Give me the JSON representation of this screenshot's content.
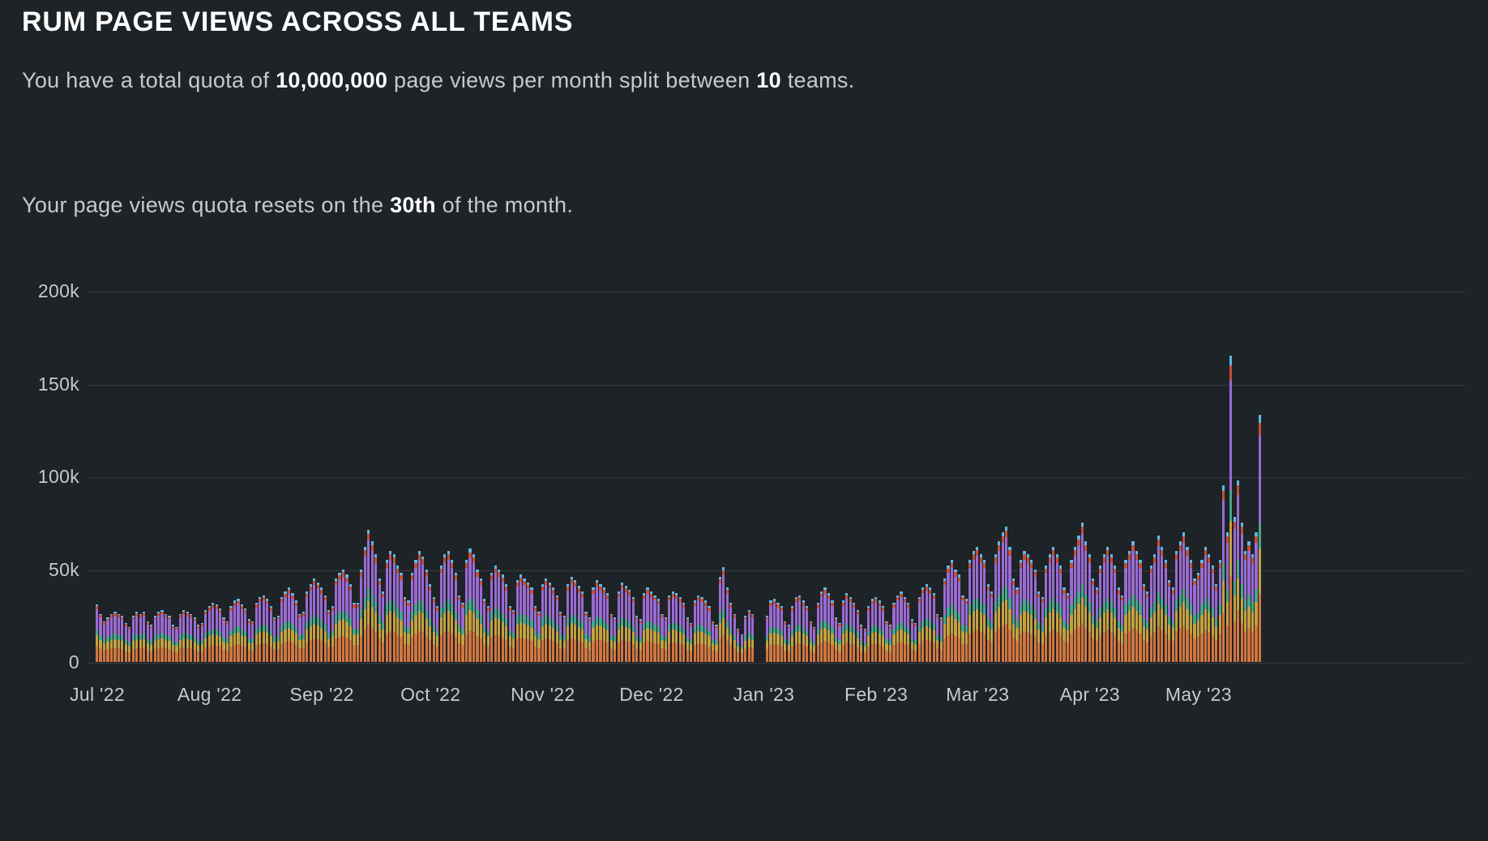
{
  "page": {
    "title": "RUM PAGE VIEWS ACROSS ALL TEAMS",
    "quota_line": {
      "prefix": "You have a total quota of ",
      "quota": "10,000,000",
      "middle": " page views per month split between ",
      "teams": "10",
      "suffix": " teams."
    },
    "reset_line": {
      "prefix": "Your page views quota resets on the ",
      "day": "30th",
      "suffix": " of the month."
    }
  },
  "colors": {
    "background": "#1e2327",
    "title_text": "#ffffff",
    "body_text": "#c6cacd",
    "grid": "#353c41",
    "axis_text": "#c6cacd"
  },
  "chart_data": {
    "type": "bar",
    "stacked": true,
    "title": "RUM page views across all teams, daily stacked bars",
    "xlabel": "",
    "ylabel": "",
    "ylim": [
      0,
      200000
    ],
    "grid": true,
    "legend": "none",
    "y_ticks_k": [
      0,
      50,
      100,
      150,
      200
    ],
    "y_tick_labels": [
      "0",
      "50k",
      "100k",
      "150k",
      "200k"
    ],
    "x_tick_labels": [
      "Jul '22",
      "Aug '22",
      "Sep '22",
      "Oct '22",
      "Nov '22",
      "Dec '22",
      "Jan '23",
      "Feb '23",
      "Mar '23",
      "Apr '23",
      "May '23"
    ],
    "month_day_offsets": [
      0,
      31,
      62,
      92,
      123,
      153,
      184,
      215,
      243,
      274,
      304
    ],
    "x_start_day": "Jul 1 '22",
    "series": [
      {
        "name": "orange",
        "color": "#d2763e",
        "fraction": 0.28
      },
      {
        "name": "gold",
        "color": "#c5a13f",
        "fraction": 0.18
      },
      {
        "name": "teal",
        "color": "#47a78c",
        "fraction": 0.1
      },
      {
        "name": "purple",
        "color": "#9b6ad2",
        "fraction": 0.36
      },
      {
        "name": "red",
        "color": "#c44e3a",
        "fraction": 0.05
      },
      {
        "name": "blue",
        "color": "#5fb8e5",
        "fraction": 0.03
      }
    ],
    "daily_totals_k": [
      31,
      26,
      22,
      24,
      26,
      27,
      26,
      25,
      21,
      19,
      25,
      27,
      26,
      27,
      22,
      20,
      25,
      27,
      28,
      26,
      25,
      20,
      19,
      26,
      28,
      27,
      26,
      24,
      20,
      21,
      28,
      30,
      32,
      31,
      29,
      24,
      22,
      30,
      33,
      34,
      31,
      29,
      23,
      22,
      32,
      35,
      36,
      34,
      30,
      24,
      25,
      35,
      38,
      40,
      37,
      33,
      26,
      27,
      38,
      42,
      45,
      43,
      40,
      36,
      28,
      30,
      45,
      48,
      50,
      47,
      42,
      32,
      32,
      50,
      62,
      71,
      65,
      58,
      45,
      38,
      55,
      60,
      58,
      52,
      48,
      35,
      33,
      48,
      55,
      60,
      57,
      50,
      42,
      35,
      30,
      52,
      58,
      60,
      55,
      48,
      36,
      32,
      55,
      61,
      58,
      50,
      45,
      34,
      30,
      48,
      52,
      50,
      47,
      42,
      30,
      28,
      44,
      47,
      45,
      43,
      40,
      30,
      27,
      42,
      45,
      43,
      40,
      36,
      27,
      25,
      42,
      46,
      44,
      41,
      38,
      27,
      24,
      40,
      44,
      42,
      40,
      37,
      26,
      24,
      38,
      43,
      41,
      39,
      35,
      25,
      23,
      37,
      40,
      38,
      36,
      34,
      26,
      24,
      36,
      38,
      37,
      35,
      32,
      24,
      21,
      33,
      36,
      35,
      33,
      30,
      22,
      20,
      46,
      51,
      40,
      32,
      26,
      18,
      15,
      25,
      28,
      26,
      0,
      0,
      0,
      25,
      33,
      34,
      32,
      30,
      22,
      20,
      30,
      35,
      36,
      33,
      30,
      22,
      19,
      32,
      38,
      40,
      37,
      33,
      24,
      21,
      33,
      37,
      35,
      32,
      28,
      20,
      18,
      30,
      34,
      35,
      33,
      30,
      22,
      20,
      32,
      36,
      38,
      35,
      32,
      23,
      21,
      35,
      40,
      42,
      40,
      37,
      26,
      24,
      45,
      52,
      55,
      50,
      47,
      36,
      34,
      55,
      60,
      62,
      58,
      55,
      42,
      38,
      58,
      65,
      70,
      73,
      62,
      45,
      40,
      55,
      60,
      58,
      55,
      50,
      38,
      35,
      52,
      58,
      62,
      58,
      52,
      40,
      37,
      55,
      62,
      68,
      75,
      65,
      58,
      45,
      40,
      52,
      58,
      62,
      58,
      52,
      40,
      36,
      55,
      60,
      65,
      60,
      55,
      42,
      38,
      52,
      58,
      68,
      62,
      55,
      44,
      40,
      60,
      65,
      70,
      62,
      55,
      45,
      48,
      55,
      62,
      58,
      52,
      42,
      55,
      95,
      70,
      165,
      78,
      98,
      75,
      60,
      65,
      58,
      70,
      133
    ]
  }
}
